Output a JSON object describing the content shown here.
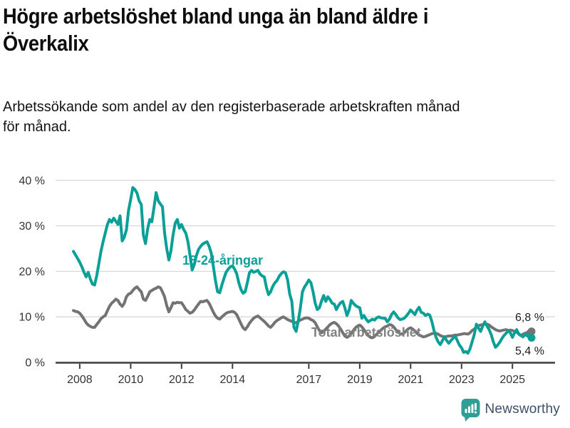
{
  "header": {
    "title_lines": [
      "Högre arbetslöshet bland unga än bland äldre i",
      "Överkalix"
    ],
    "subtitle_lines": [
      "Arbetssökande som andel av den registerbaserade arbetskraften månad",
      "för månad."
    ]
  },
  "chart_data": {
    "type": "line",
    "title": "Högre arbetslöshet bland unga än bland äldre i Överkalix",
    "subtitle": "Arbetssökande som andel av den registerbaserade arbetskraften månad för månad.",
    "x_unit": "month",
    "x_range_start": "2007-10",
    "x_range_end": "2025-10",
    "grid": true,
    "ylim": [
      0,
      42
    ],
    "y_ticks": {
      "values": [
        0,
        10,
        20,
        30,
        40
      ],
      "labels": [
        "0 %",
        "10 %",
        "20 %",
        "30 %",
        "40 %"
      ]
    },
    "x_ticks": {
      "years": [
        "2008",
        "2010",
        "2012",
        "2014",
        "2017",
        "2019",
        "2021",
        "2023",
        "2025"
      ]
    },
    "series": [
      {
        "name": "Total arbetslöshet",
        "color": "#737373",
        "label_color": "#828282",
        "end_label": "6,8 %",
        "end_value": 6.8,
        "values": [
          11.4,
          11.2,
          11.1,
          10.8,
          10.2,
          9.5,
          8.7,
          8.2,
          7.9,
          7.7,
          7.7,
          8.3,
          8.9,
          9.6,
          10.0,
          10.3,
          11.3,
          12.3,
          13.0,
          13.4,
          13.9,
          13.6,
          12.8,
          12.3,
          13.0,
          14.4,
          15.0,
          15.2,
          15.8,
          16.3,
          16.6,
          16.0,
          15.5,
          13.9,
          13.6,
          14.5,
          15.5,
          15.8,
          16.1,
          16.3,
          16.6,
          16.4,
          15.5,
          14.4,
          12.5,
          11.1,
          12.0,
          13.1,
          13.0,
          13.2,
          13.1,
          13.1,
          12.4,
          11.6,
          11.2,
          10.8,
          11.0,
          11.5,
          12.2,
          12.8,
          13.4,
          13.3,
          13.5,
          13.6,
          13.0,
          12.0,
          11.0,
          10.2,
          9.7,
          9.5,
          10.0,
          10.4,
          10.8,
          11.0,
          11.1,
          11.2,
          11.0,
          10.5,
          9.5,
          8.5,
          7.6,
          7.2,
          7.8,
          8.6,
          9.2,
          9.7,
          10.0,
          10.2,
          9.8,
          9.4,
          9.0,
          8.5,
          8.0,
          7.7,
          8.2,
          8.8,
          9.2,
          9.5,
          9.8,
          10.0,
          9.7,
          9.4,
          9.2,
          9.0,
          8.8,
          8.7,
          9.0,
          9.3,
          9.5,
          9.7,
          9.8,
          9.7,
          9.4,
          9.2,
          8.7,
          7.8,
          7.0,
          6.5,
          6.8,
          7.3,
          7.8,
          8.3,
          8.6,
          8.8,
          8.5,
          8.0,
          7.3,
          6.5,
          5.8,
          5.5,
          5.8,
          6.4,
          7.0,
          7.6,
          8.0,
          8.2,
          7.8,
          7.2,
          6.5,
          5.9,
          5.5,
          5.4,
          5.7,
          6.2,
          6.6,
          7.1,
          7.5,
          7.8,
          8.0,
          8.3,
          8.2,
          7.8,
          7.2,
          6.7,
          6.3,
          6.2,
          6.5,
          7.0,
          7.4,
          7.6,
          7.3,
          6.9,
          6.4,
          6.0,
          5.8,
          5.6,
          5.7,
          5.9,
          6.1,
          6.3,
          6.4,
          6.4,
          6.2,
          5.9,
          5.7,
          5.6,
          5.7,
          5.8,
          5.8,
          5.9,
          6.0,
          6.0,
          6.1,
          6.2,
          6.3,
          6.3,
          6.2,
          6.5,
          7.0,
          7.3,
          7.7,
          8.1,
          8.2,
          8.3,
          8.4,
          8.4,
          8.2,
          7.8,
          7.5,
          7.2,
          7.0,
          6.9,
          7.0,
          7.1,
          7.2,
          7.0,
          7.1,
          7.0,
          6.8,
          6.6,
          6.3,
          5.9,
          6.2,
          6.4,
          6.6,
          7.0,
          6.8
        ]
      },
      {
        "name": "18-24-åringar",
        "color": "#0a9f97",
        "label_color": "#0a9f97",
        "end_label": "5,4 %",
        "end_value": 5.4,
        "values": [
          24.4,
          23.6,
          22.8,
          22.0,
          21.0,
          19.8,
          18.8,
          19.8,
          18.3,
          17.2,
          17.0,
          19.0,
          21.7,
          24.4,
          26.5,
          28.4,
          30.2,
          31.4,
          30.8,
          31.7,
          31.0,
          30.3,
          32.2,
          26.7,
          27.5,
          29.1,
          33.4,
          35.8,
          38.4,
          38.0,
          37.2,
          35.5,
          34.7,
          28.0,
          26.1,
          29.3,
          31.4,
          30.9,
          34.0,
          37.3,
          35.5,
          34.8,
          34.2,
          28.4,
          25.0,
          22.5,
          24.5,
          28.0,
          30.6,
          31.4,
          29.5,
          30.3,
          29.2,
          28.4,
          26.5,
          23.5,
          20.3,
          21.5,
          23.5,
          24.8,
          25.5,
          26.0,
          26.3,
          26.5,
          25.5,
          24.0,
          21.0,
          18.0,
          15.5,
          15.3,
          17.0,
          18.5,
          19.8,
          20.5,
          21.0,
          21.2,
          20.5,
          19.5,
          17.5,
          16.0,
          15.2,
          15.5,
          17.5,
          19.7,
          20.2,
          19.8,
          20.0,
          20.2,
          19.4,
          19.0,
          18.8,
          16.5,
          14.9,
          15.5,
          16.7,
          17.5,
          18.0,
          18.9,
          19.5,
          19.9,
          19.7,
          18.1,
          15.0,
          13.4,
          7.7,
          6.8,
          9.0,
          11.9,
          15.5,
          16.6,
          17.3,
          18.1,
          17.5,
          15.5,
          13.0,
          11.6,
          12.0,
          13.5,
          14.7,
          13.4,
          14.4,
          13.8,
          13.0,
          12.8,
          11.6,
          12.5,
          13.1,
          13.4,
          12.0,
          10.3,
          11.5,
          13.6,
          13.0,
          12.5,
          12.2,
          12.0,
          9.7,
          10.3,
          9.5,
          8.9,
          9.2,
          9.5,
          9.3,
          9.8,
          10.0,
          9.8,
          9.7,
          9.7,
          8.9,
          9.5,
          10.5,
          11.1,
          10.5,
          9.8,
          9.4,
          9.5,
          9.7,
          10.2,
          10.8,
          11.5,
          11.0,
          10.5,
          11.5,
          12.1,
          11.0,
          10.8,
          10.3,
          10.6,
          10.4,
          9.0,
          7.0,
          5.5,
          4.5,
          3.9,
          4.8,
          5.6,
          4.8,
          4.2,
          4.8,
          5.3,
          5.8,
          4.8,
          3.8,
          3.2,
          2.2,
          2.4,
          2.0,
          3.0,
          4.5,
          6.1,
          8.4,
          7.5,
          6.8,
          8.0,
          8.9,
          8.0,
          7.2,
          6.1,
          4.5,
          3.3,
          3.8,
          4.4,
          5.2,
          5.9,
          6.4,
          6.9,
          6.5,
          5.5,
          6.5,
          7.2,
          6.2,
          5.9,
          5.6,
          6.2,
          5.8,
          6.3,
          5.4
        ]
      }
    ],
    "legend_position": "inline-labels"
  },
  "annotations": {
    "youth_label": "18-24-åringar",
    "total_label": "Total arbetslöshet",
    "end_value_total": "6,8 %",
    "end_value_youth": "5,4 %"
  },
  "footer": {
    "brand": "Newsworthy",
    "brand_color": "#3d5166",
    "icon_color": "#2f9e94"
  },
  "colors": {
    "youth_series": "#0a9f97",
    "total_series": "#737373",
    "gridline": "#d9d9d9",
    "axis": "#3c3c3c",
    "axis_text": "#333333"
  }
}
